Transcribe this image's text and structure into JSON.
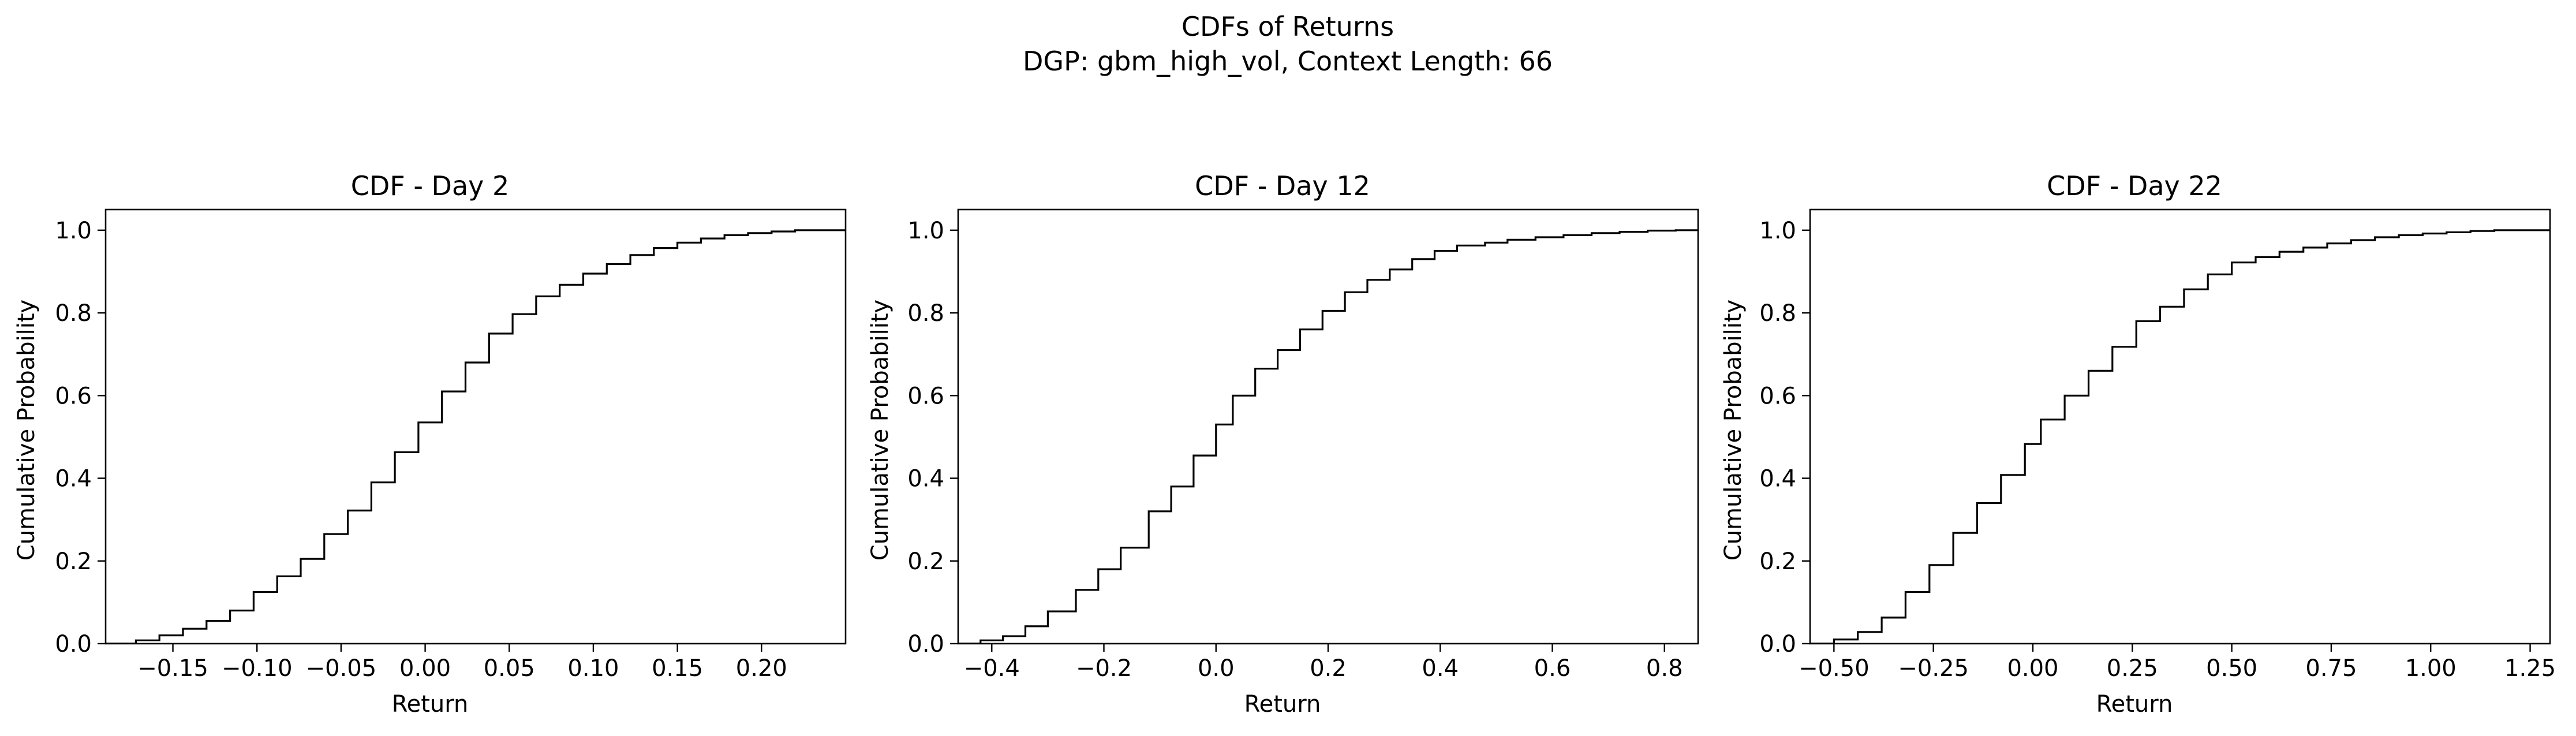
{
  "figure": {
    "title_line1": "CDFs of Returns",
    "title_line2": "DGP: gbm_high_vol, Context Length: 66"
  },
  "colors": {
    "line": "#000000",
    "axes": "#000000",
    "background": "#ffffff"
  },
  "chart_data": [
    {
      "type": "line",
      "step": true,
      "title": "CDF - Day 2",
      "xlabel": "Return",
      "ylabel": "Cumulative Probability",
      "xlim": [
        -0.19,
        0.25
      ],
      "ylim": [
        0,
        1.05
      ],
      "xticks": [
        -0.15,
        -0.1,
        -0.05,
        0.0,
        0.05,
        0.1,
        0.15,
        0.2
      ],
      "xtick_labels": [
        "−0.15",
        "−0.10",
        "−0.05",
        "0.00",
        "0.05",
        "0.10",
        "0.15",
        "0.20"
      ],
      "yticks": [
        0.0,
        0.2,
        0.4,
        0.6,
        0.8,
        1.0
      ],
      "ytick_labels": [
        "0.0",
        "0.2",
        "0.4",
        "0.6",
        "0.8",
        "1.0"
      ],
      "grid": false,
      "series": [
        {
          "x": [
            -0.19,
            -0.172,
            -0.158,
            -0.144,
            -0.13,
            -0.116,
            -0.102,
            -0.088,
            -0.074,
            -0.06,
            -0.046,
            -0.032,
            -0.018,
            -0.004,
            0.01,
            0.024,
            0.038,
            0.052,
            0.066,
            0.08,
            0.094,
            0.108,
            0.122,
            0.136,
            0.15,
            0.164,
            0.178,
            0.192,
            0.206,
            0.22,
            0.25
          ],
          "y": [
            0.0,
            0.008,
            0.02,
            0.036,
            0.055,
            0.08,
            0.125,
            0.163,
            0.205,
            0.265,
            0.322,
            0.39,
            0.463,
            0.535,
            0.61,
            0.68,
            0.75,
            0.797,
            0.84,
            0.868,
            0.895,
            0.918,
            0.94,
            0.957,
            0.97,
            0.98,
            0.988,
            0.993,
            0.997,
            1.0,
            1.0
          ]
        }
      ]
    },
    {
      "type": "line",
      "step": true,
      "title": "CDF - Day 12",
      "xlabel": "Return",
      "ylabel": "Cumulative Probability",
      "xlim": [
        -0.46,
        0.86
      ],
      "ylim": [
        0,
        1.05
      ],
      "xticks": [
        -0.4,
        -0.2,
        0.0,
        0.2,
        0.4,
        0.6,
        0.8
      ],
      "xtick_labels": [
        "−0.4",
        "−0.2",
        "0.0",
        "0.2",
        "0.4",
        "0.6",
        "0.8"
      ],
      "yticks": [
        0.0,
        0.2,
        0.4,
        0.6,
        0.8,
        1.0
      ],
      "ytick_labels": [
        "0.0",
        "0.2",
        "0.4",
        "0.6",
        "0.8",
        "1.0"
      ],
      "grid": false,
      "series": [
        {
          "x": [
            -0.46,
            -0.42,
            -0.38,
            -0.34,
            -0.3,
            -0.25,
            -0.21,
            -0.17,
            -0.12,
            -0.08,
            -0.04,
            0.0,
            0.03,
            0.07,
            0.11,
            0.15,
            0.19,
            0.23,
            0.27,
            0.31,
            0.35,
            0.39,
            0.43,
            0.48,
            0.52,
            0.57,
            0.62,
            0.67,
            0.72,
            0.77,
            0.82,
            0.86
          ],
          "y": [
            0.0,
            0.008,
            0.018,
            0.042,
            0.078,
            0.13,
            0.18,
            0.232,
            0.32,
            0.38,
            0.455,
            0.53,
            0.6,
            0.665,
            0.71,
            0.76,
            0.805,
            0.85,
            0.88,
            0.905,
            0.93,
            0.95,
            0.963,
            0.97,
            0.977,
            0.983,
            0.988,
            0.993,
            0.996,
            0.999,
            1.0,
            1.0
          ]
        }
      ]
    },
    {
      "type": "line",
      "step": true,
      "title": "CDF - Day 22",
      "xlabel": "Return",
      "ylabel": "Cumulative Probability",
      "xlim": [
        -0.56,
        1.3
      ],
      "ylim": [
        0,
        1.05
      ],
      "xticks": [
        -0.5,
        -0.25,
        0.0,
        0.25,
        0.5,
        0.75,
        1.0,
        1.25
      ],
      "xtick_labels": [
        "−0.50",
        "−0.25",
        "0.00",
        "0.25",
        "0.50",
        "0.75",
        "1.00",
        "1.25"
      ],
      "yticks": [
        0.0,
        0.2,
        0.4,
        0.6,
        0.8,
        1.0
      ],
      "ytick_labels": [
        "0.0",
        "0.2",
        "0.4",
        "0.6",
        "0.8",
        "1.0"
      ],
      "grid": false,
      "series": [
        {
          "x": [
            -0.56,
            -0.5,
            -0.44,
            -0.38,
            -0.32,
            -0.26,
            -0.2,
            -0.14,
            -0.08,
            -0.02,
            0.02,
            0.08,
            0.14,
            0.2,
            0.26,
            0.32,
            0.38,
            0.44,
            0.5,
            0.56,
            0.62,
            0.68,
            0.74,
            0.8,
            0.86,
            0.92,
            0.98,
            1.04,
            1.1,
            1.16,
            1.3
          ],
          "y": [
            0.0,
            0.01,
            0.028,
            0.063,
            0.125,
            0.19,
            0.268,
            0.34,
            0.408,
            0.483,
            0.542,
            0.6,
            0.66,
            0.718,
            0.78,
            0.815,
            0.857,
            0.893,
            0.922,
            0.935,
            0.948,
            0.958,
            0.968,
            0.976,
            0.983,
            0.988,
            0.992,
            0.995,
            0.998,
            1.0,
            1.0
          ]
        }
      ]
    }
  ]
}
